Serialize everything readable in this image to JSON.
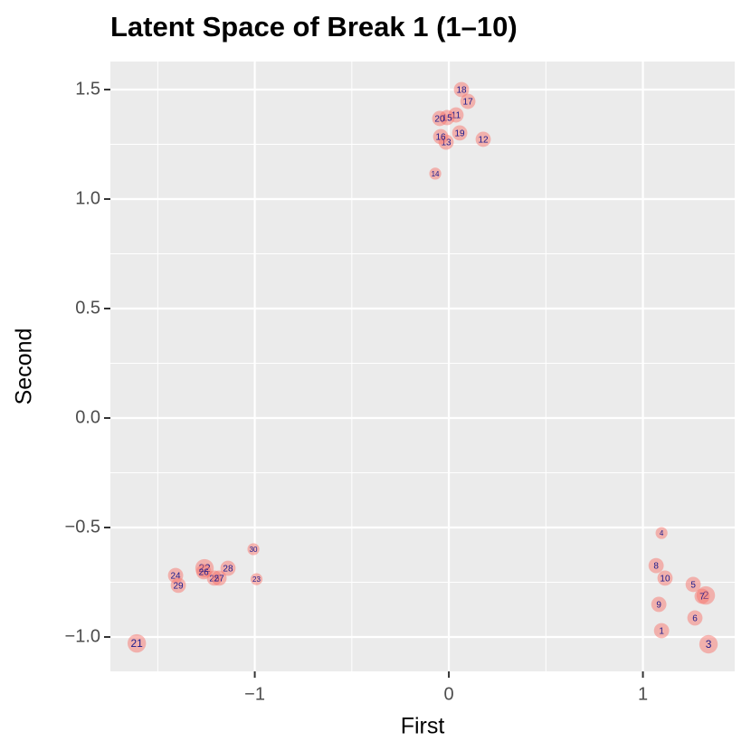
{
  "chart_data": {
    "type": "scatter",
    "title": "Latent Space of Break 1 (1–10)",
    "x_label": "First",
    "y_label": "Second",
    "labels": [
      "1",
      "2",
      "3",
      "4",
      "5",
      "6",
      "7",
      "8",
      "9",
      "10",
      "11",
      "12",
      "13",
      "14",
      "15",
      "16",
      "17",
      "18",
      "19",
      "20",
      "21",
      "22",
      "23",
      "24",
      "25",
      "26",
      "27",
      "28",
      "29",
      "30"
    ],
    "x": [
      1.096,
      1.324,
      1.338,
      1.096,
      1.259,
      1.268,
      1.305,
      1.068,
      1.082,
      1.114,
      0.037,
      0.177,
      -0.014,
      -0.07,
      -0.009,
      -0.042,
      0.098,
      0.065,
      0.056,
      -0.047,
      -1.608,
      -1.259,
      -0.991,
      -1.408,
      -1.208,
      -1.263,
      -1.184,
      -1.138,
      -1.394,
      -1.007
    ],
    "values": [
      -0.971,
      -0.81,
      -1.033,
      -0.525,
      -0.76,
      -0.913,
      -0.814,
      -0.674,
      -0.851,
      -0.731,
      1.384,
      1.273,
      1.26,
      1.116,
      1.372,
      1.285,
      1.446,
      1.5,
      1.302,
      1.368,
      -1.029,
      -0.686,
      -0.736,
      -0.719,
      -0.731,
      -0.702,
      -0.731,
      -0.686,
      -0.764,
      -0.599
    ],
    "sizes": [
      3,
      4,
      4,
      2,
      3,
      3,
      3,
      3,
      3,
      3,
      3,
      3,
      3,
      2,
      3,
      3,
      3,
      3,
      3,
      3,
      4,
      4,
      2,
      3,
      3,
      3,
      3,
      3,
      3,
      2
    ],
    "color": "#f8766d",
    "label_color": "#1a1a8c",
    "xlim": [
      -1.744,
      1.473
    ],
    "ylim": [
      -1.157,
      1.628
    ],
    "xticks": [
      {
        "value": -1,
        "label": "−1"
      },
      0,
      1
    ],
    "yticks": [
      {
        "value": -1,
        "label": "−1.0"
      },
      {
        "value": -0.5,
        "label": "−0.5"
      },
      {
        "value": 0,
        "label": "0.0"
      },
      0.5,
      {
        "value": 1,
        "label": "1.0"
      },
      1.5
    ],
    "xminor": [
      -1.5,
      -0.5,
      0.5
    ],
    "yminor": [
      -0.75,
      -0.25,
      0.25,
      0.75,
      1.25
    ],
    "grid": true
  }
}
